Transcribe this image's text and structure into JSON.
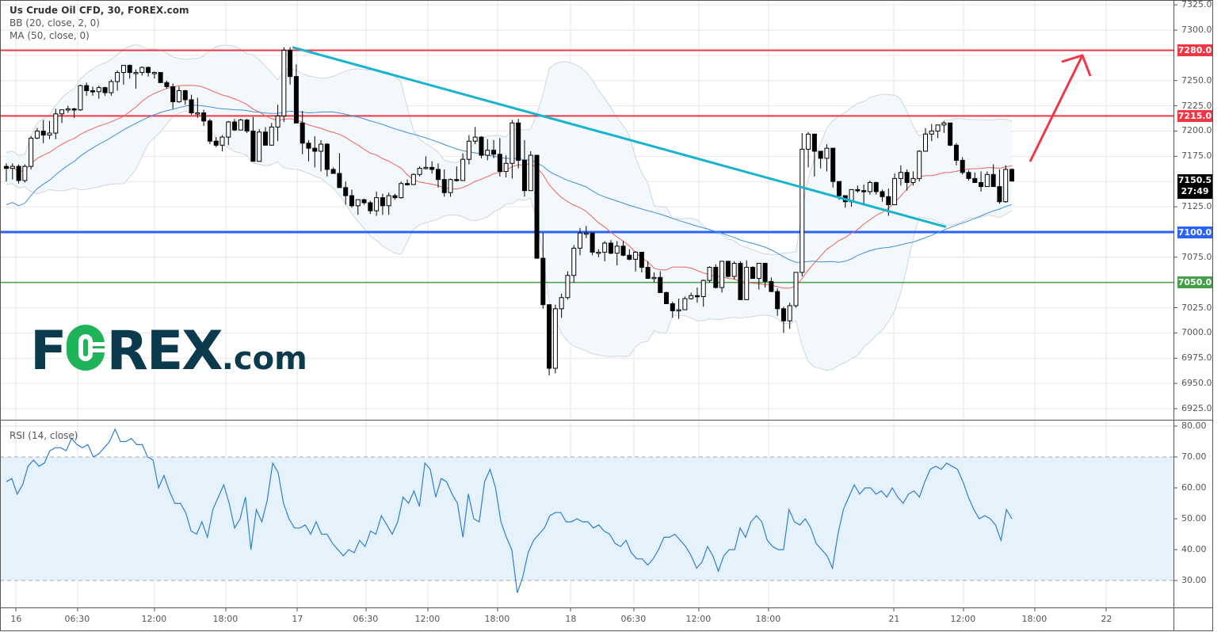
{
  "header": {
    "title": "Us Crude Oil CFD, 30, FOREX.com",
    "indicators": [
      "BB (20, close, 2, 0)",
      "MA (50, close, 0)"
    ]
  },
  "rsi_pane": {
    "title": "RSI (14, close)"
  },
  "logo": {
    "text_a": "F",
    "text_b": "REX",
    "text_c": ".com"
  },
  "price_axis": {
    "ticks": [
      "7325.0",
      "7300.0",
      "7250.0",
      "7225.0",
      "7200.0",
      "7175.0",
      "7125.0",
      "7075.0",
      "7025.0",
      "7000.0",
      "6975.0",
      "6950.0",
      "6925.0"
    ],
    "levels": [
      {
        "label": "7280.0",
        "color": "#f23645"
      },
      {
        "label": "7215.0",
        "color": "#f23645"
      },
      {
        "label": "7100.0",
        "color": "#2962ff"
      },
      {
        "label": "7050.0",
        "color": "#43a047"
      }
    ],
    "last_price": "7150.5",
    "countdown": "27:49"
  },
  "rsi_axis": {
    "ticks": [
      "80.00",
      "70.00",
      "60.00",
      "50.00",
      "40.00",
      "30.00"
    ]
  },
  "time_axis": {
    "ticks": [
      "16",
      "06:30",
      "12:00",
      "18:00",
      "17",
      "06:30",
      "12:00",
      "18:00",
      "18",
      "06:30",
      "12:00",
      "18:00",
      "21",
      "12:00",
      "18:00",
      "22"
    ]
  },
  "colors": {
    "resistance": "#f23645",
    "support_blue": "#2962ff",
    "support_green": "#43a047",
    "trendline": "#17b3cf",
    "bb_basis": "#f0625a",
    "ma50": "#3f8fe0",
    "bb_fill": "#f3f8fc",
    "rsi_line": "#2f7fd1",
    "rsi_fill": "#e5f2fc"
  },
  "chart_data": [
    {
      "type": "candlestick",
      "title": "Us Crude Oil CFD, 30, FOREX.com",
      "xlabel": "",
      "ylabel": "Price",
      "ylim": [
        6910,
        7330
      ],
      "grid": true,
      "x_ticks": [
        "16",
        "06:30",
        "12:00",
        "18:00",
        "17",
        "06:30",
        "12:00",
        "18:00",
        "18",
        "06:30",
        "12:00",
        "18:00",
        "21",
        "12:00",
        "18:00",
        "22"
      ],
      "horizontal_levels": [
        {
          "value": 7280.0,
          "color": "red",
          "role": "resistance"
        },
        {
          "value": 7215.0,
          "color": "red",
          "role": "resistance"
        },
        {
          "value": 7100.0,
          "color": "blue",
          "role": "support"
        },
        {
          "value": 7050.0,
          "color": "green",
          "role": "support"
        }
      ],
      "trendline": {
        "from": {
          "x_index": 46,
          "price": 7283
        },
        "to": {
          "x_index": 155,
          "price": 7105
        }
      },
      "annotation_arrow": {
        "direction": "up",
        "from_price": 7170,
        "to_price": 7276
      },
      "last_price": 7150.5,
      "overlays": [
        "BB (20, close, 2, 0)",
        "MA (50, close, 0)"
      ],
      "ohlc": [
        [
          7165,
          7168,
          7150,
          7163
        ],
        [
          7163,
          7168,
          7152,
          7165
        ],
        [
          7165,
          7167,
          7148,
          7151
        ],
        [
          7151,
          7167,
          7149,
          7165
        ],
        [
          7165,
          7195,
          7162,
          7193
        ],
        [
          7193,
          7203,
          7192,
          7200
        ],
        [
          7200,
          7211,
          7188,
          7196
        ],
        [
          7196,
          7210,
          7192,
          7198
        ],
        [
          7198,
          7222,
          7192,
          7217
        ],
        [
          7217,
          7220,
          7208,
          7221
        ],
        [
          7221,
          7225,
          7218,
          7222
        ],
        [
          7222,
          7223,
          7213,
          7221
        ],
        [
          7221,
          7246,
          7220,
          7245
        ],
        [
          7245,
          7248,
          7235,
          7240
        ],
        [
          7240,
          7244,
          7235,
          7239
        ],
        [
          7239,
          7245,
          7232,
          7243
        ],
        [
          7243,
          7244,
          7235,
          7238
        ],
        [
          7238,
          7251,
          7235,
          7249
        ],
        [
          7249,
          7260,
          7240,
          7258
        ],
        [
          7258,
          7265,
          7246,
          7265
        ],
        [
          7265,
          7266,
          7252,
          7258
        ],
        [
          7258,
          7261,
          7242,
          7258
        ],
        [
          7258,
          7264,
          7255,
          7263
        ],
        [
          7263,
          7264,
          7254,
          7258
        ],
        [
          7258,
          7259,
          7252,
          7258
        ],
        [
          7258,
          7258,
          7249,
          7248
        ],
        [
          7248,
          7250,
          7242,
          7244
        ],
        [
          7244,
          7247,
          7222,
          7229
        ],
        [
          7229,
          7244,
          7228,
          7240
        ],
        [
          7240,
          7241,
          7226,
          7231
        ],
        [
          7231,
          7236,
          7216,
          7218
        ],
        [
          7218,
          7233,
          7213,
          7218
        ],
        [
          7218,
          7221,
          7205,
          7210
        ],
        [
          7210,
          7212,
          7187,
          7190
        ],
        [
          7190,
          7194,
          7184,
          7186
        ],
        [
          7186,
          7196,
          7180,
          7194
        ],
        [
          7194,
          7210,
          7186,
          7209
        ],
        [
          7209,
          7212,
          7200,
          7201
        ],
        [
          7201,
          7212,
          7202,
          7211
        ],
        [
          7211,
          7212,
          7198,
          7200
        ],
        [
          7200,
          7214,
          7176,
          7170
        ],
        [
          7170,
          7202,
          7172,
          7199
        ],
        [
          7199,
          7204,
          7189,
          7186
        ],
        [
          7186,
          7208,
          7192,
          7204
        ],
        [
          7204,
          7226,
          7190,
          7215
        ],
        [
          7215,
          7283,
          7209,
          7280
        ],
        [
          7280,
          7283,
          7246,
          7254
        ],
        [
          7254,
          7266,
          7212,
          7208
        ],
        [
          7208,
          7220,
          7177,
          7188
        ],
        [
          7188,
          7191,
          7170,
          7183
        ],
        [
          7183,
          7195,
          7164,
          7180
        ],
        [
          7180,
          7191,
          7160,
          7187
        ],
        [
          7187,
          7188,
          7155,
          7162
        ],
        [
          7162,
          7164,
          7158,
          7158
        ],
        [
          7158,
          7178,
          7145,
          7144
        ],
        [
          7144,
          7150,
          7127,
          7136
        ],
        [
          7136,
          7142,
          7124,
          7126
        ],
        [
          7126,
          7132,
          7117,
          7132
        ],
        [
          7132,
          7133,
          7127,
          7129
        ],
        [
          7129,
          7131,
          7118,
          7121
        ],
        [
          7121,
          7140,
          7116,
          7134
        ],
        [
          7134,
          7138,
          7117,
          7126
        ],
        [
          7126,
          7139,
          7117,
          7136
        ],
        [
          7136,
          7138,
          7132,
          7134
        ],
        [
          7134,
          7150,
          7133,
          7148
        ],
        [
          7148,
          7152,
          7146,
          7147
        ],
        [
          7147,
          7158,
          7149,
          7157
        ],
        [
          7157,
          7165,
          7155,
          7163
        ],
        [
          7163,
          7175,
          7162,
          7164
        ],
        [
          7164,
          7170,
          7158,
          7162
        ],
        [
          7162,
          7168,
          7144,
          7152
        ],
        [
          7152,
          7162,
          7135,
          7139
        ],
        [
          7139,
          7153,
          7135,
          7152
        ],
        [
          7152,
          7165,
          7150,
          7151
        ],
        [
          7151,
          7178,
          7162,
          7172
        ],
        [
          7172,
          7196,
          7167,
          7190
        ],
        [
          7190,
          7204,
          7187,
          7194
        ],
        [
          7194,
          7195,
          7173,
          7176
        ],
        [
          7176,
          7192,
          7171,
          7181
        ],
        [
          7181,
          7191,
          7173,
          7177
        ],
        [
          7177,
          7193,
          7155,
          7160
        ],
        [
          7160,
          7176,
          7154,
          7168
        ],
        [
          7168,
          7211,
          7153,
          7208
        ],
        [
          7208,
          7212,
          7163,
          7171
        ],
        [
          7171,
          7191,
          7135,
          7141
        ],
        [
          7141,
          7180,
          7150,
          7176
        ],
        [
          7176,
          7158,
          7130,
          7074
        ],
        [
          7074,
          7099,
          7024,
          7028
        ],
        [
          7028,
          7025,
          6958,
          6965
        ],
        [
          6965,
          7028,
          6960,
          7024
        ],
        [
          7024,
          7039,
          7015,
          7035
        ],
        [
          7035,
          7061,
          7033,
          7057
        ],
        [
          7057,
          7087,
          7050,
          7084
        ],
        [
          7084,
          7104,
          7077,
          7099
        ],
        [
          7099,
          7106,
          7094,
          7099
        ],
        [
          7099,
          7099,
          7077,
          7080
        ],
        [
          7080,
          7083,
          7075,
          7080
        ],
        [
          7080,
          7091,
          7071,
          7089
        ],
        [
          7089,
          7092,
          7078,
          7079
        ],
        [
          7079,
          7091,
          7067,
          7086
        ],
        [
          7086,
          7091,
          7076,
          7077
        ],
        [
          7077,
          7083,
          7072,
          7073
        ],
        [
          7073,
          7081,
          7061,
          7080
        ],
        [
          7080,
          7080,
          7060,
          7065
        ],
        [
          7065,
          7071,
          7054,
          7054
        ],
        [
          7054,
          7060,
          7050,
          7055
        ],
        [
          7055,
          7061,
          7040,
          7040
        ],
        [
          7040,
          7041,
          7033,
          7029
        ],
        [
          7029,
          7031,
          7015,
          7022
        ],
        [
          7022,
          7034,
          7014,
          7023
        ],
        [
          7023,
          7036,
          7026,
          7034
        ],
        [
          7034,
          7040,
          7033,
          7037
        ],
        [
          7037,
          7045,
          7030,
          7036
        ],
        [
          7036,
          7053,
          7026,
          7052
        ],
        [
          7052,
          7066,
          7050,
          7065
        ],
        [
          7065,
          7068,
          7044,
          7045
        ],
        [
          7045,
          7071,
          7040,
          7071
        ],
        [
          7071,
          7070,
          7055,
          7056
        ],
        [
          7056,
          7071,
          7053,
          7069
        ],
        [
          7069,
          7071,
          7033,
          7033
        ],
        [
          7033,
          7072,
          7034,
          7065
        ],
        [
          7065,
          7066,
          7054,
          7054
        ],
        [
          7054,
          7069,
          7043,
          7069
        ],
        [
          7069,
          7068,
          7045,
          7051
        ],
        [
          7051,
          7055,
          7041,
          7041
        ],
        [
          7041,
          7044,
          7017,
          7024
        ],
        [
          7024,
          7026,
          7000,
          7012
        ],
        [
          7012,
          7030,
          7004,
          7027
        ],
        [
          7027,
          7060,
          7025,
          7060
        ],
        [
          7060,
          7198,
          7056,
          7182
        ],
        [
          7182,
          7199,
          7164,
          7197
        ],
        [
          7197,
          7190,
          7155,
          7180
        ],
        [
          7180,
          7176,
          7163,
          7173
        ],
        [
          7173,
          7187,
          7160,
          7183
        ],
        [
          7183,
          7180,
          7144,
          7150
        ],
        [
          7150,
          7145,
          7132,
          7136
        ],
        [
          7136,
          7134,
          7124,
          7130
        ],
        [
          7130,
          7140,
          7125,
          7142
        ],
        [
          7142,
          7146,
          7139,
          7141
        ],
        [
          7141,
          7147,
          7128,
          7140
        ],
        [
          7140,
          7151,
          7137,
          7149
        ],
        [
          7149,
          7150,
          7137,
          7140
        ],
        [
          7140,
          7142,
          7130,
          7135
        ],
        [
          7135,
          7143,
          7116,
          7127
        ],
        [
          7127,
          7158,
          7127,
          7153
        ],
        [
          7153,
          7166,
          7146,
          7159
        ],
        [
          7159,
          7162,
          7141,
          7149
        ],
        [
          7149,
          7160,
          7146,
          7153
        ],
        [
          7153,
          7181,
          7150,
          7180
        ],
        [
          7180,
          7203,
          7181,
          7197
        ],
        [
          7197,
          7207,
          7190,
          7200
        ],
        [
          7200,
          7205,
          7193,
          7206
        ],
        [
          7206,
          7210,
          7198,
          7208
        ],
        [
          7208,
          7208,
          7185,
          7186
        ],
        [
          7186,
          7188,
          7166,
          7171
        ],
        [
          7171,
          7174,
          7157,
          7159
        ],
        [
          7159,
          7161,
          7151,
          7153
        ],
        [
          7153,
          7159,
          7150,
          7149
        ],
        [
          7149,
          7160,
          7140,
          7145
        ],
        [
          7145,
          7160,
          7148,
          7157
        ],
        [
          7157,
          7167,
          7146,
          7145
        ],
        [
          7145,
          7162,
          7128,
          7130
        ],
        [
          7130,
          7166,
          7129,
          7162
        ],
        [
          7162,
          7163,
          7150,
          7150.5
        ]
      ]
    },
    {
      "type": "line",
      "title": "RSI (14, close)",
      "ylim": [
        22,
        82
      ],
      "bands": {
        "upper": 70,
        "lower": 30
      },
      "y_ticks": [
        80,
        70,
        60,
        50,
        40,
        30
      ],
      "values": [
        62,
        63,
        58,
        61,
        67,
        69,
        67,
        68,
        72,
        73,
        73,
        72,
        76,
        74,
        73,
        74,
        70,
        71,
        73,
        75,
        79,
        75,
        75,
        76,
        74,
        74,
        70,
        69,
        60,
        64,
        59,
        55,
        55,
        52,
        46,
        45,
        49,
        44,
        53,
        57,
        61,
        55,
        47,
        50,
        57,
        40,
        53,
        49,
        56,
        68,
        65,
        55,
        50,
        47,
        47,
        48,
        45,
        49,
        45,
        45,
        42,
        40,
        38,
        40,
        39,
        43,
        41,
        46,
        45,
        51,
        48,
        45,
        49,
        57,
        55,
        59,
        54,
        68,
        66,
        57,
        63,
        62,
        58,
        55,
        44,
        58,
        50,
        49,
        62,
        66,
        60,
        49,
        44,
        40,
        26,
        31,
        39,
        43,
        45,
        47,
        51,
        52,
        52,
        49,
        49,
        50,
        49,
        49,
        47,
        48,
        46,
        45,
        42,
        41,
        43,
        39,
        37,
        37,
        35,
        37,
        40,
        44,
        44,
        45,
        43,
        41,
        38,
        34,
        36,
        41,
        38,
        33,
        38,
        40,
        40,
        47,
        44,
        49,
        51,
        49,
        43,
        41,
        40,
        40,
        53,
        49,
        48,
        50,
        47,
        42,
        40,
        38,
        34,
        45,
        53,
        57,
        61,
        58,
        60,
        60,
        58,
        59,
        57,
        60,
        57,
        55,
        58,
        59,
        57,
        62,
        66,
        67,
        66,
        68,
        67,
        66,
        62,
        57,
        53,
        50,
        51,
        50,
        48,
        43,
        53,
        50
      ],
      "values_note": "approximate; see rendered path"
    }
  ]
}
